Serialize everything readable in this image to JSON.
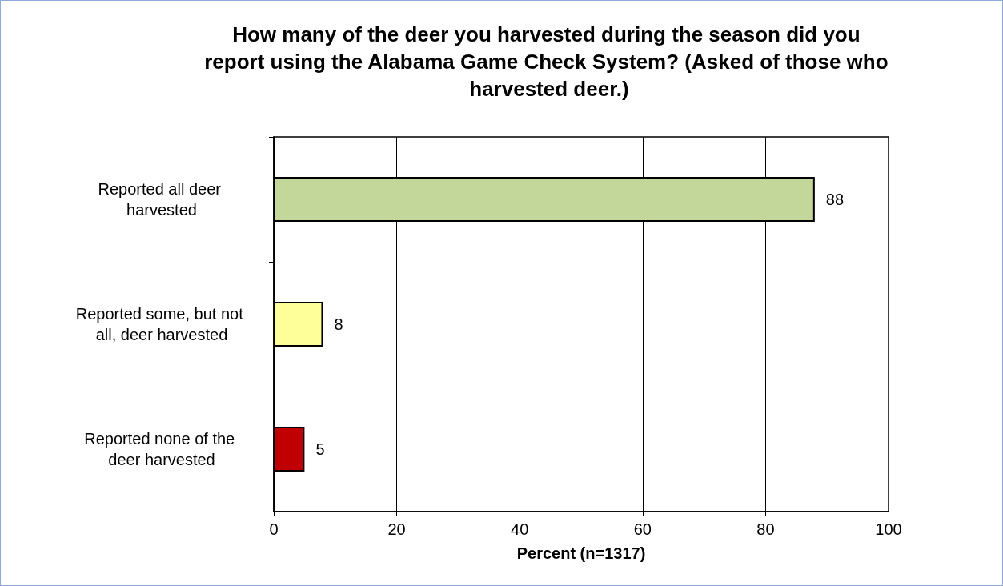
{
  "chart_data": {
    "type": "bar",
    "orientation": "horizontal",
    "title": "How many of the deer you harvested during the season did you report using the Alabama Game Check System? (Asked of those who harvested deer.)",
    "xlabel": "Percent (n=1317)",
    "categories": [
      "Reported all deer harvested",
      "Reported some, but not all, deer harvested",
      "Reported none of the deer harvested"
    ],
    "values": [
      88,
      8,
      5
    ],
    "colors": [
      "#c4d79b",
      "#ffff99",
      "#c00000"
    ],
    "xlim": [
      0,
      100
    ],
    "xticks": [
      0,
      20,
      40,
      60,
      80,
      100
    ],
    "grid": "x",
    "data_labels": true
  }
}
